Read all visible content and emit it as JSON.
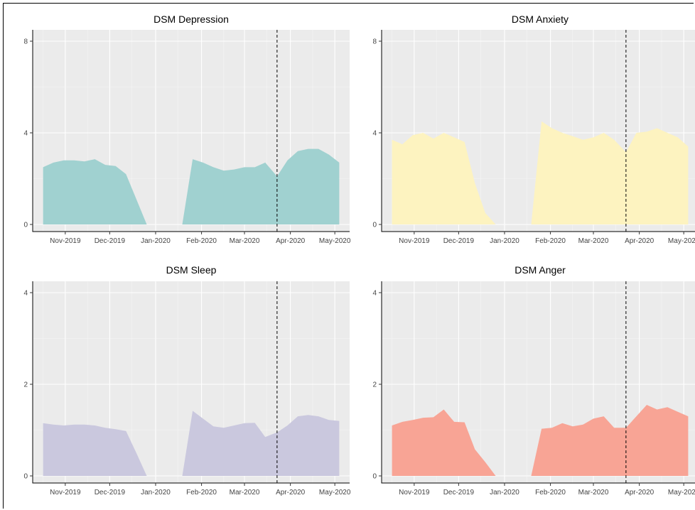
{
  "chart_data": [
    {
      "type": "area",
      "title": "DSM Depression",
      "color": "#a0d1d0",
      "ylim": [
        0,
        8
      ],
      "yticks": [
        0,
        4,
        8
      ],
      "xlabels": [
        "Nov-2019",
        "Dec-2019",
        "Jan-2020",
        "Feb-2020",
        "Mar-2020",
        "Apr-2020",
        "May-2020"
      ],
      "vline": "2020-03-23",
      "grid": true,
      "segments": [
        {
          "x": [
            "2019-10-17",
            "2019-10-24",
            "2019-10-31",
            "2019-11-07",
            "2019-11-14",
            "2019-11-21",
            "2019-11-28",
            "2019-12-05",
            "2019-12-12",
            "2019-12-19",
            "2019-12-26"
          ],
          "y": [
            2.5,
            2.7,
            2.8,
            2.8,
            2.75,
            2.85,
            2.6,
            2.55,
            2.2,
            1.1,
            0
          ]
        },
        {
          "x": [
            "2020-01-19",
            "2020-01-26",
            "2020-02-02",
            "2020-02-09",
            "2020-02-16",
            "2020-02-23",
            "2020-03-01",
            "2020-03-08",
            "2020-03-15",
            "2020-03-23",
            "2020-03-30",
            "2020-04-06",
            "2020-04-13",
            "2020-04-20",
            "2020-04-27",
            "2020-05-04"
          ],
          "y": [
            0,
            2.85,
            2.7,
            2.5,
            2.35,
            2.4,
            2.5,
            2.5,
            2.7,
            2.1,
            2.8,
            3.2,
            3.3,
            3.3,
            3.05,
            2.7
          ]
        }
      ]
    },
    {
      "type": "area",
      "title": "DSM Anxiety",
      "color": "#fdf3c0",
      "ylim": [
        0,
        8
      ],
      "yticks": [
        0,
        4,
        8
      ],
      "xlabels": [
        "Nov-2019",
        "Dec-2019",
        "Jan-2020",
        "Feb-2020",
        "Mar-2020",
        "Apr-2020",
        "May-2020"
      ],
      "vline": "2020-03-23",
      "grid": true,
      "segments": [
        {
          "x": [
            "2019-10-17",
            "2019-10-24",
            "2019-10-31",
            "2019-11-07",
            "2019-11-14",
            "2019-11-21",
            "2019-11-28",
            "2019-12-05",
            "2019-12-12",
            "2019-12-19",
            "2019-12-26"
          ],
          "y": [
            3.7,
            3.5,
            3.9,
            4.0,
            3.75,
            4.0,
            3.8,
            3.6,
            1.8,
            0.5,
            0
          ]
        },
        {
          "x": [
            "2020-01-19",
            "2020-01-26",
            "2020-02-02",
            "2020-02-09",
            "2020-02-16",
            "2020-02-23",
            "2020-03-01",
            "2020-03-08",
            "2020-03-15",
            "2020-03-23",
            "2020-03-30",
            "2020-04-06",
            "2020-04-13",
            "2020-04-20",
            "2020-04-27",
            "2020-05-04"
          ],
          "y": [
            0,
            4.5,
            4.2,
            4.0,
            3.85,
            3.7,
            3.8,
            4.0,
            3.7,
            3.15,
            4.0,
            4.05,
            4.2,
            4.0,
            3.8,
            3.4
          ]
        }
      ]
    },
    {
      "type": "area",
      "title": "DSM Sleep",
      "color": "#cac8de",
      "ylim": [
        0,
        4
      ],
      "yticks": [
        0,
        2,
        4
      ],
      "xlabels": [
        "Nov-2019",
        "Dec-2019",
        "Jan-2020",
        "Feb-2020",
        "Mar-2020",
        "Apr-2020",
        "May-2020"
      ],
      "vline": "2020-03-23",
      "grid": true,
      "segments": [
        {
          "x": [
            "2019-10-17",
            "2019-10-24",
            "2019-10-31",
            "2019-11-07",
            "2019-11-14",
            "2019-11-21",
            "2019-11-28",
            "2019-12-05",
            "2019-12-12",
            "2019-12-19",
            "2019-12-26"
          ],
          "y": [
            1.15,
            1.12,
            1.1,
            1.12,
            1.12,
            1.1,
            1.05,
            1.02,
            0.98,
            0.5,
            0
          ]
        },
        {
          "x": [
            "2020-01-19",
            "2020-01-26",
            "2020-02-02",
            "2020-02-09",
            "2020-02-16",
            "2020-02-23",
            "2020-03-01",
            "2020-03-08",
            "2020-03-15",
            "2020-03-23",
            "2020-03-30",
            "2020-04-06",
            "2020-04-13",
            "2020-04-20",
            "2020-04-27",
            "2020-05-04"
          ],
          "y": [
            0,
            1.42,
            1.25,
            1.08,
            1.05,
            1.1,
            1.15,
            1.16,
            0.85,
            0.95,
            1.1,
            1.3,
            1.33,
            1.3,
            1.22,
            1.2
          ]
        }
      ]
    },
    {
      "type": "area",
      "title": "DSM Anger",
      "color": "#f8a495",
      "ylim": [
        0,
        4
      ],
      "yticks": [
        0,
        2,
        4
      ],
      "xlabels": [
        "Nov-2019",
        "Dec-2019",
        "Jan-2020",
        "Feb-2020",
        "Mar-2020",
        "Apr-2020",
        "May-2020"
      ],
      "vline": "2020-03-23",
      "grid": true,
      "segments": [
        {
          "x": [
            "2019-10-17",
            "2019-10-24",
            "2019-10-31",
            "2019-11-07",
            "2019-11-14",
            "2019-11-21",
            "2019-11-28",
            "2019-12-05",
            "2019-12-12",
            "2019-12-19",
            "2019-12-26"
          ],
          "y": [
            1.1,
            1.18,
            1.22,
            1.27,
            1.28,
            1.45,
            1.18,
            1.17,
            0.58,
            0.3,
            0
          ]
        },
        {
          "x": [
            "2020-01-19",
            "2020-01-26",
            "2020-02-02",
            "2020-02-09",
            "2020-02-16",
            "2020-02-23",
            "2020-03-01",
            "2020-03-08",
            "2020-03-15",
            "2020-03-23",
            "2020-03-30",
            "2020-04-06",
            "2020-04-13",
            "2020-04-20",
            "2020-04-27",
            "2020-05-04"
          ],
          "y": [
            0,
            1.03,
            1.05,
            1.15,
            1.08,
            1.12,
            1.25,
            1.3,
            1.05,
            1.05,
            1.3,
            1.55,
            1.45,
            1.5,
            1.4,
            1.3
          ]
        }
      ]
    }
  ]
}
